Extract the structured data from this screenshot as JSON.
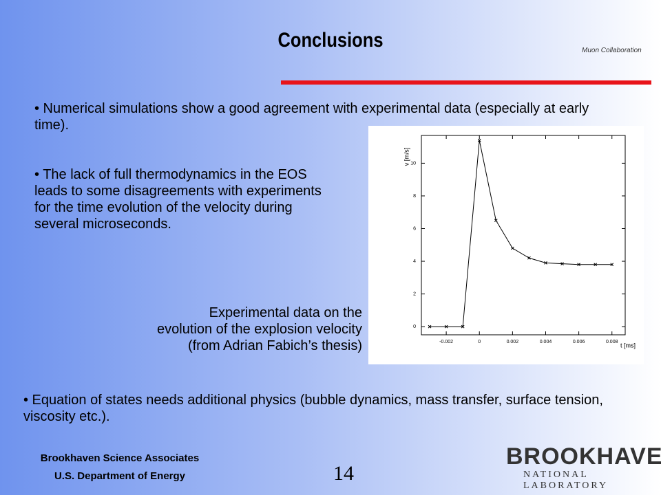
{
  "header": {
    "title": "Conclusions",
    "logo": "Muon Collaboration"
  },
  "bullets": [
    "• Numerical simulations show a good agreement with experimental data (especially at early time).",
    "• The lack of full thermodynamics in the EOS leads to some disagreements with  experiments for the time evolution of the velocity during several microseconds.",
    "• Equation of states needs  additional physics (bubble dynamics, mass transfer, surface tension, viscosity etc.)."
  ],
  "caption": [
    "Experimental data on the",
    "evolution of the explosion velocity",
    "(from Adrian Fabich’s thesis)"
  ],
  "chart_data": {
    "type": "line",
    "x_label": "t [ms]",
    "y_label": "v [m/s]",
    "x": [
      -0.003,
      -0.002,
      -0.001,
      0,
      0.001,
      0.002,
      0.003,
      0.004,
      0.005,
      0.006,
      0.007,
      0.008
    ],
    "values": [
      0,
      0,
      0,
      11.4,
      6.5,
      4.8,
      4.2,
      3.9,
      3.85,
      3.8,
      3.8,
      3.8
    ],
    "color": "#000000",
    "xlim": [
      -0.0035,
      0.0088
    ],
    "ylim": [
      -0.5,
      11.7
    ],
    "xticks": [
      -0.002,
      0,
      0.002,
      0.004,
      0.006,
      0.008
    ],
    "yticks": [
      0,
      2,
      4,
      6,
      8,
      10
    ]
  },
  "footer": {
    "org": "Brookhaven Science Associates",
    "dept": "U.S. Department of Energy",
    "page": "14",
    "logo": "BROOKHAVEN",
    "logo_sub": "NATIONAL LABORATORY"
  }
}
